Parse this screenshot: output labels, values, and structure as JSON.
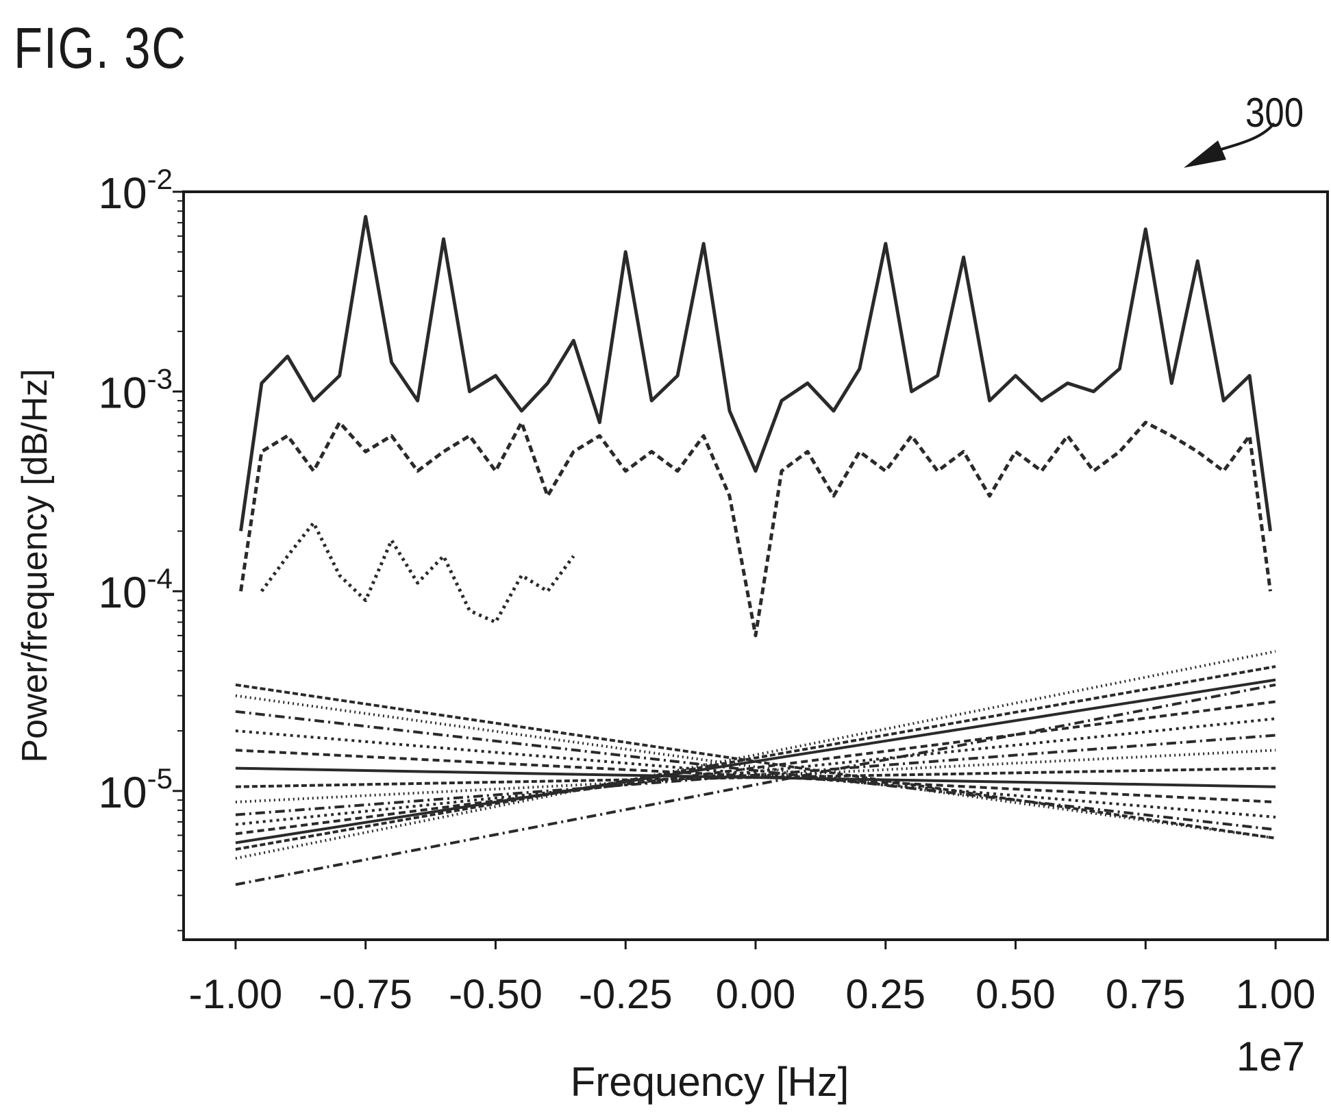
{
  "figure_label": "FIG. 3C",
  "reference_numeral": "300",
  "colors": {
    "ink": "#1a1a1a",
    "background": "#ffffff",
    "trace": "#2a2a2a"
  },
  "chart_data": {
    "type": "line",
    "title": "",
    "xlabel": "Frequency [Hz]",
    "ylabel": "Power/frequency [dB/Hz]",
    "x_offset_label": "1e7",
    "xscale": "linear",
    "yscale": "log",
    "xlim": [
      -1.1,
      1.1
    ],
    "ylim": [
      1.8e-06,
      0.01
    ],
    "x_ticks": [
      -1.0,
      -0.75,
      -0.5,
      -0.25,
      0.0,
      0.25,
      0.5,
      0.75,
      1.0
    ],
    "x_tick_labels": [
      "-1.00",
      "-0.75",
      "-0.50",
      "-0.25",
      "0.00",
      "0.25",
      "0.50",
      "0.75",
      "1.00"
    ],
    "y_ticks": [
      0.01,
      0.001,
      0.0001,
      1e-05
    ],
    "y_tick_labels": [
      {
        "base": "10",
        "exp": "-2"
      },
      {
        "base": "10",
        "exp": "-3"
      },
      {
        "base": "10",
        "exp": "-4"
      },
      {
        "base": "10",
        "exp": "-5"
      }
    ],
    "grid": false,
    "legend": "none",
    "series": [
      {
        "x": [
          -0.99,
          -0.95,
          -0.9,
          -0.85,
          -0.8,
          -0.75,
          -0.7,
          -0.65,
          -0.6,
          -0.55,
          -0.5,
          -0.45,
          -0.4,
          -0.35,
          -0.3,
          -0.25,
          -0.2,
          -0.15,
          -0.1,
          -0.05,
          0.0,
          0.05,
          0.1,
          0.15,
          0.2,
          0.25,
          0.3,
          0.35,
          0.4,
          0.45,
          0.5,
          0.55,
          0.6,
          0.65,
          0.7,
          0.75,
          0.8,
          0.85,
          0.9,
          0.95,
          0.99
        ],
        "y": [
          0.0002,
          0.0011,
          0.0015,
          0.0009,
          0.0012,
          0.0075,
          0.0014,
          0.0009,
          0.0058,
          0.001,
          0.0012,
          0.0008,
          0.0011,
          0.0018,
          0.0007,
          0.005,
          0.0009,
          0.0012,
          0.0055,
          0.0008,
          0.0004,
          0.0009,
          0.0011,
          0.0008,
          0.0013,
          0.0055,
          0.001,
          0.0012,
          0.0047,
          0.0009,
          0.0012,
          0.0009,
          0.0011,
          0.001,
          0.0013,
          0.0065,
          0.0011,
          0.0045,
          0.0009,
          0.0012,
          0.0002
        ]
      },
      {
        "x": [
          -0.99,
          -0.95,
          -0.9,
          -0.85,
          -0.8,
          -0.75,
          -0.7,
          -0.65,
          -0.6,
          -0.55,
          -0.5,
          -0.45,
          -0.4,
          -0.35,
          -0.3,
          -0.25,
          -0.2,
          -0.15,
          -0.1,
          -0.05,
          0.0,
          0.05,
          0.1,
          0.15,
          0.2,
          0.25,
          0.3,
          0.35,
          0.4,
          0.45,
          0.5,
          0.55,
          0.6,
          0.65,
          0.7,
          0.75,
          0.8,
          0.85,
          0.9,
          0.95,
          0.99
        ],
        "y": [
          0.0001,
          0.0005,
          0.0006,
          0.0004,
          0.0007,
          0.0005,
          0.0006,
          0.0004,
          0.0005,
          0.0006,
          0.0004,
          0.0007,
          0.0003,
          0.0005,
          0.0006,
          0.0004,
          0.0005,
          0.0004,
          0.0006,
          0.0003,
          6e-05,
          0.0004,
          0.0005,
          0.0003,
          0.0005,
          0.0004,
          0.0006,
          0.0004,
          0.0005,
          0.0003,
          0.0005,
          0.0004,
          0.0006,
          0.0004,
          0.0005,
          0.0007,
          0.0006,
          0.0005,
          0.0004,
          0.0006,
          0.0001
        ]
      },
      {
        "x": [
          -0.95,
          -0.9,
          -0.85,
          -0.8,
          -0.75,
          -0.7,
          -0.65,
          -0.6,
          -0.55,
          -0.5,
          -0.45,
          -0.4,
          -0.35
        ],
        "y": [
          0.0001,
          0.00015,
          0.00022,
          0.00012,
          9e-05,
          0.00018,
          0.00011,
          0.00015,
          8e-05,
          7e-05,
          0.00012,
          0.0001,
          0.00015
        ]
      },
      {
        "x": [
          -1.0,
          1.0
        ],
        "y": [
          3.4e-06,
          3.4e-05
        ]
      },
      {
        "x": [
          -1.0,
          1.0
        ],
        "y": [
          4.6e-06,
          5e-05
        ]
      },
      {
        "x": [
          -1.0,
          1.0
        ],
        "y": [
          5.1e-06,
          4.2e-05
        ]
      },
      {
        "x": [
          -1.0,
          1.0
        ],
        "y": [
          5.5e-06,
          3.6e-05
        ]
      },
      {
        "x": [
          -1.0,
          1.0
        ],
        "y": [
          6.1e-06,
          2.8e-05
        ]
      },
      {
        "x": [
          -1.0,
          1.0
        ],
        "y": [
          6.8e-06,
          2.3e-05
        ]
      },
      {
        "x": [
          -1.0,
          1.0
        ],
        "y": [
          7.6e-06,
          1.9e-05
        ]
      },
      {
        "x": [
          -1.0,
          1.0
        ],
        "y": [
          8.8e-06,
          1.6e-05
        ]
      },
      {
        "x": [
          -1.0,
          1.0
        ],
        "y": [
          1.05e-05,
          1.3e-05
        ]
      },
      {
        "x": [
          -1.0,
          1.0
        ],
        "y": [
          1.3e-05,
          1.05e-05
        ]
      },
      {
        "x": [
          -1.0,
          1.0
        ],
        "y": [
          1.6e-05,
          8.8e-06
        ]
      },
      {
        "x": [
          -1.0,
          1.0
        ],
        "y": [
          2e-05,
          7.4e-06
        ]
      },
      {
        "x": [
          -1.0,
          1.0
        ],
        "y": [
          2.5e-05,
          6.4e-06
        ]
      },
      {
        "x": [
          -1.0,
          1.0
        ],
        "y": [
          3e-05,
          5.8e-06
        ]
      },
      {
        "x": [
          -1.0,
          1.0
        ],
        "y": [
          3.4e-05,
          5.8e-06
        ]
      }
    ]
  }
}
